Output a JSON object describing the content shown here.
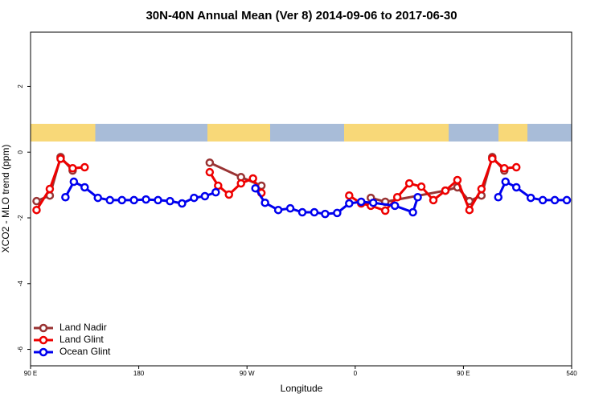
{
  "chart_data": {
    "type": "line",
    "title": "30N-40N Annual Mean (Ver 8)   2014-09-06 to 2017-06-30",
    "x_label": "Longitude",
    "y_label": "XCO2 - MLO trend (ppm)",
    "xlim": [
      90,
      540
    ],
    "xticks": [
      {
        "value": 90,
        "label": "90 E"
      },
      180,
      {
        "value": 270,
        "label": "90 W"
      },
      {
        "value": 360,
        "label": "0"
      },
      {
        "value": 450,
        "label": "90 E"
      },
      540
    ],
    "ylim": [
      -6.5,
      3.65
    ],
    "yticks": [
      -6,
      -4,
      -2,
      0,
      2
    ],
    "legend": "bottom-left",
    "series": [
      {
        "name": "Land Nadir",
        "color": "#993333",
        "x": [
          95,
          106,
          115,
          125,
          180,
          239,
          265,
          282,
          320,
          373,
          385,
          435,
          445,
          455,
          465,
          474,
          484
        ],
        "values": [
          -1.49,
          -1.32,
          -0.15,
          -0.56,
          null,
          -0.32,
          -0.76,
          -1.02,
          null,
          -1.39,
          -1.51,
          -1.17,
          -1.07,
          -1.49,
          -1.32,
          -0.15,
          -0.56
        ]
      },
      {
        "name": "Land Glint",
        "color": "#ee0000",
        "x": [
          95,
          106,
          115,
          125,
          135,
          180,
          239,
          246,
          255,
          265,
          275,
          282,
          320,
          355,
          365,
          373,
          385,
          395,
          405,
          415,
          425,
          435,
          445,
          455,
          465,
          474,
          484,
          494
        ],
        "values": [
          -1.76,
          -1.12,
          -0.2,
          -0.49,
          -0.46,
          null,
          -0.61,
          -1.02,
          -1.29,
          -0.95,
          -0.8,
          -1.24,
          null,
          -1.32,
          -1.56,
          -1.63,
          -1.78,
          -1.37,
          -0.95,
          -1.05,
          -1.46,
          -1.17,
          -0.85,
          -1.76,
          -1.12,
          -0.2,
          -0.49,
          -0.46
        ]
      },
      {
        "name": "Ocean Glint",
        "color": "#0000ee",
        "x": [
          119,
          126,
          135,
          146,
          156,
          166,
          176,
          186,
          196,
          206,
          216,
          226,
          235,
          244,
          260,
          277,
          285,
          296,
          306,
          316,
          326,
          335,
          345,
          355,
          365,
          375,
          393,
          408,
          412,
          445,
          479,
          485,
          494,
          506,
          516,
          526,
          536
        ],
        "values": [
          -1.37,
          -0.9,
          -1.07,
          -1.39,
          -1.46,
          -1.46,
          -1.46,
          -1.44,
          -1.46,
          -1.49,
          -1.56,
          -1.39,
          -1.34,
          -1.22,
          null,
          -1.1,
          -1.54,
          -1.76,
          -1.71,
          -1.83,
          -1.83,
          -1.88,
          -1.85,
          -1.56,
          -1.51,
          -1.54,
          -1.63,
          -1.83,
          -1.37,
          null,
          -1.37,
          -0.9,
          -1.07,
          -1.39,
          -1.46,
          -1.46,
          -1.46
        ]
      }
    ]
  }
}
